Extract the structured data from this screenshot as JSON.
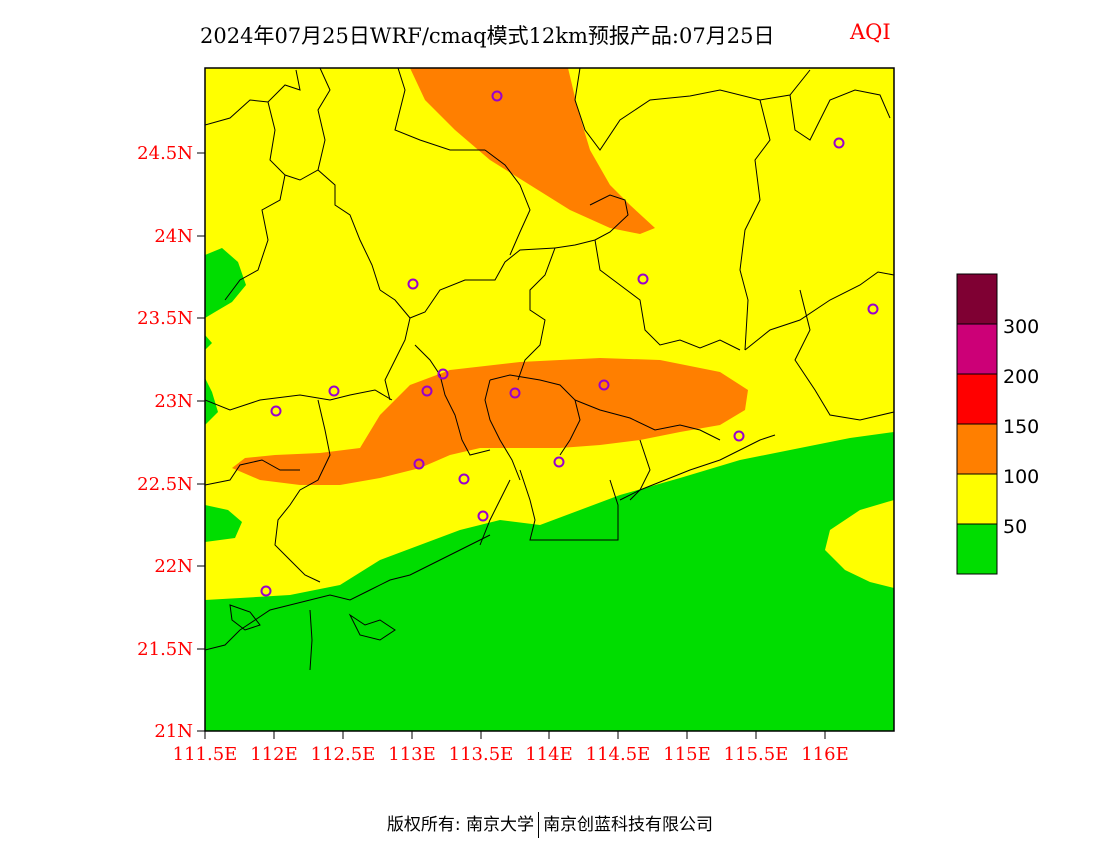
{
  "title": "2024年07月25日WRF/cmaq模式12km预报产品:07月25日",
  "variable": "AQI",
  "colors": {
    "good": "#00dd00",
    "moderate": "#ffff00",
    "usg": "#ff7f00",
    "unhealthy": "#ff0000",
    "very_unhealthy": "#cc0077",
    "hazardous": "#7f0033",
    "axis_label": "#ff0000",
    "boundary": "#000000",
    "station": "#9900cc"
  },
  "lat_labels": [
    "24.5N",
    "24N",
    "23.5N",
    "23N",
    "22.5N",
    "22N",
    "21.5N",
    "21N"
  ],
  "lon_labels": [
    "111.5E",
    "112E",
    "112.5E",
    "113E",
    "113.5E",
    "114E",
    "114.5E",
    "115E",
    "115.5E",
    "116E"
  ],
  "colorbar_labels": [
    "300",
    "200",
    "150",
    "100",
    "50"
  ],
  "footer": {
    "left": "版权所有: 南京大学",
    "right": "南京创蓝科技有限公司"
  }
}
